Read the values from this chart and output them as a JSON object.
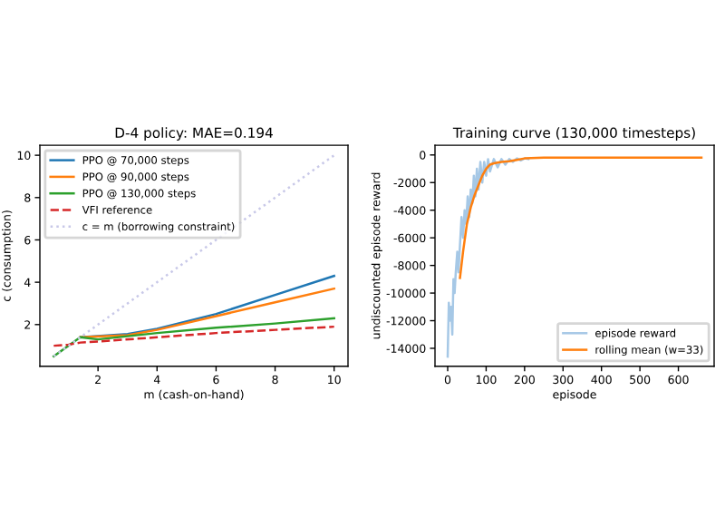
{
  "chart_data": [
    {
      "type": "line",
      "title": "D-4 policy: MAE=0.194",
      "xlabel": "m (cash-on-hand)",
      "ylabel": "c (consumption)",
      "xlim": [
        0.03,
        10.47
      ],
      "ylim": [
        0.03,
        10.47
      ],
      "xticks": [
        2,
        4,
        6,
        8,
        10
      ],
      "yticks": [
        2,
        4,
        6,
        8,
        10
      ],
      "grid": false,
      "legend": "top left",
      "series": [
        {
          "name": "PPO @ 70,000 steps",
          "color": "#1f77b4",
          "x": [
            1.4,
            3,
            4,
            6,
            8,
            10
          ],
          "values": [
            1.4,
            1.55,
            1.8,
            2.5,
            3.4,
            4.3
          ]
        },
        {
          "name": "PPO @ 90,000 steps",
          "color": "#ff7f0e",
          "x": [
            1.4,
            3,
            4,
            6,
            8,
            10
          ],
          "values": [
            1.4,
            1.5,
            1.75,
            2.4,
            3.05,
            3.7
          ]
        },
        {
          "name": "PPO @ 130,000 steps",
          "color": "#2ca02c",
          "x": [
            0.5,
            1.4,
            2,
            4,
            6,
            8,
            10
          ],
          "values": [
            0.5,
            1.4,
            1.3,
            1.6,
            1.85,
            2.05,
            2.3
          ]
        },
        {
          "name": "VFI reference",
          "color": "#d62728",
          "line_style": "dashed",
          "x": [
            0.5,
            1,
            1.4,
            2,
            4,
            6,
            8,
            10
          ],
          "values": [
            1.0,
            1.05,
            1.15,
            1.2,
            1.4,
            1.6,
            1.75,
            1.9
          ]
        },
        {
          "name": "c = m (borrowing constraint)",
          "color": "#c8c8e8",
          "line_style": "dotted",
          "x": [
            0.5,
            10
          ],
          "values": [
            0.5,
            10
          ]
        }
      ]
    },
    {
      "type": "line",
      "title": "Training curve (130,000 timesteps)",
      "xlabel": "episode",
      "ylabel": "undiscounted episode reward",
      "xlim": [
        -33,
        693
      ],
      "ylim": [
        -15300,
        700
      ],
      "xticks": [
        0,
        100,
        200,
        300,
        400,
        500,
        600
      ],
      "yticks": [
        -14000,
        -12000,
        -10000,
        -8000,
        -6000,
        -4000,
        -2000,
        0
      ],
      "grid": false,
      "legend": "bottom right",
      "series": [
        {
          "name": "episode reward",
          "color": "#a6c8e6",
          "x": [
            0,
            3,
            6,
            9,
            12,
            15,
            18,
            21,
            25,
            28,
            32,
            36,
            40,
            44,
            48,
            52,
            56,
            60,
            64,
            68,
            72,
            76,
            80,
            85,
            90,
            95,
            100,
            105,
            110,
            120,
            130,
            140,
            150,
            160,
            170,
            180,
            190,
            200,
            210
          ],
          "values": [
            -14600,
            -10700,
            -12000,
            -11000,
            -13000,
            -9000,
            -10000,
            -8500,
            -7000,
            -8500,
            -6500,
            -4500,
            -6000,
            -4000,
            -5000,
            -3000,
            -4500,
            -2500,
            -3500,
            -1500,
            -3000,
            -1000,
            -2500,
            -500,
            -2000,
            -500,
            -1500,
            -300,
            -1200,
            -300,
            -900,
            -300,
            -700,
            -300,
            -500,
            -250,
            -400,
            -250,
            -300
          ]
        },
        {
          "name": "rolling mean (w=33)",
          "color": "#ff7f0e",
          "x": [
            32,
            40,
            50,
            60,
            70,
            80,
            90,
            100,
            110,
            120,
            140,
            160,
            180,
            200,
            250,
            400,
            660
          ],
          "values": [
            -8900,
            -7000,
            -5000,
            -3800,
            -2900,
            -2200,
            -1500,
            -1000,
            -700,
            -600,
            -500,
            -450,
            -350,
            -250,
            -200,
            -200,
            -200
          ]
        }
      ]
    }
  ]
}
